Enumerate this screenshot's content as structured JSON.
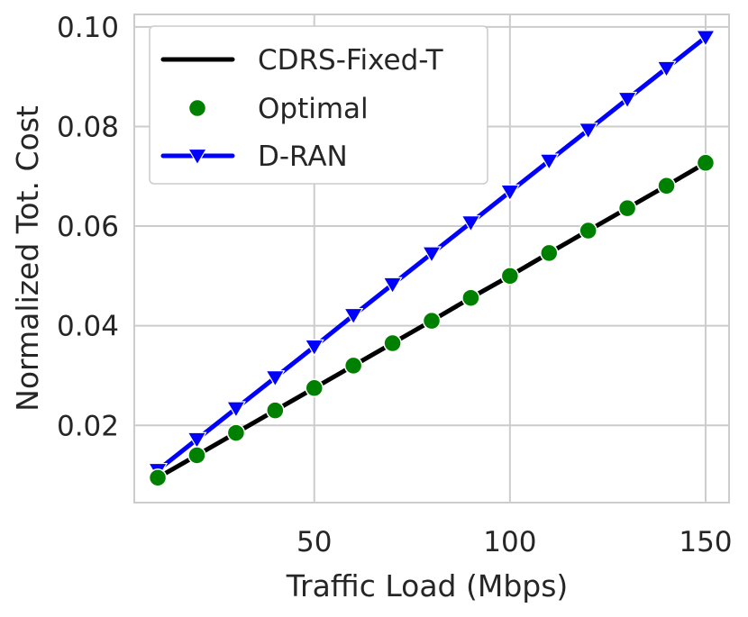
{
  "chart_data": {
    "type": "line",
    "xlabel": "Traffic Load (Mbps)",
    "ylabel": "Normalized Tot. Cost",
    "xlim": [
      4,
      156
    ],
    "ylim": [
      0.0045,
      0.1025
    ],
    "x_ticks": [
      50,
      100,
      150
    ],
    "x_tick_labels": [
      "50",
      "100",
      "150"
    ],
    "y_ticks": [
      0.02,
      0.04,
      0.06,
      0.08,
      0.1
    ],
    "y_tick_labels": [
      "0.02",
      "0.04",
      "0.06",
      "0.08",
      "0.10"
    ],
    "grid": true,
    "legend_position": "upper-left",
    "x": [
      10,
      20,
      30,
      40,
      50,
      60,
      70,
      80,
      90,
      100,
      110,
      120,
      130,
      140,
      150
    ],
    "series": [
      {
        "name": "CDRS-Fixed-T",
        "style": "line",
        "color": "#000000",
        "values": [
          0.0095,
          0.014,
          0.0185,
          0.023,
          0.0275,
          0.032,
          0.0365,
          0.041,
          0.0456,
          0.05,
          0.0546,
          0.0591,
          0.0636,
          0.0681,
          0.0727
        ]
      },
      {
        "name": "Optimal",
        "style": "markers",
        "marker": "circle",
        "color": "#008000",
        "values": [
          0.0095,
          0.014,
          0.0185,
          0.023,
          0.0275,
          0.032,
          0.0365,
          0.041,
          0.0456,
          0.05,
          0.0546,
          0.0591,
          0.0636,
          0.0681,
          0.0727
        ]
      },
      {
        "name": "D-RAN",
        "style": "line+markers",
        "marker": "triangle-down",
        "color": "#0000ff",
        "values": [
          0.011,
          0.0172,
          0.0234,
          0.0296,
          0.0358,
          0.0421,
          0.0483,
          0.0545,
          0.0607,
          0.0669,
          0.0731,
          0.0793,
          0.0855,
          0.0917,
          0.0979
        ]
      }
    ]
  }
}
